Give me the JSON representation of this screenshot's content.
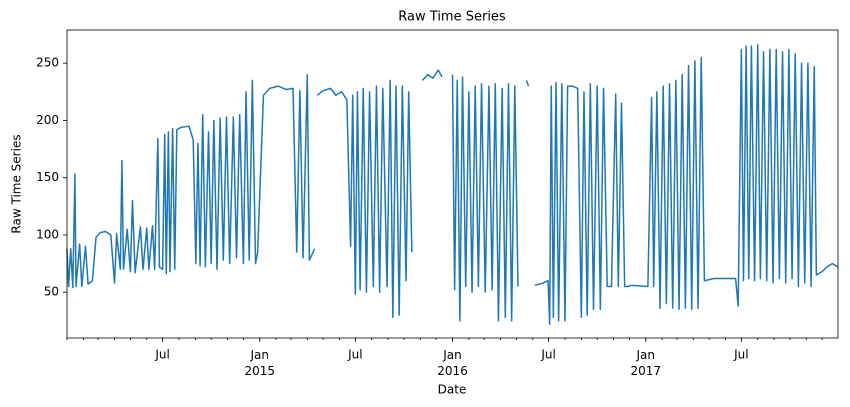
{
  "chart_data": {
    "type": "line",
    "title": "Raw Time Series",
    "xlabel": "Date",
    "ylabel": "Raw Time Series",
    "xlim": [
      "2014-01-01",
      "2017-12-31"
    ],
    "ylim": [
      10,
      279
    ],
    "yticks": [
      50,
      100,
      150,
      200,
      250
    ],
    "xticks": [
      {
        "value": "2014-07-01",
        "label": "Jul"
      },
      {
        "value": "2015-01-01",
        "label": "Jan\n2015"
      },
      {
        "value": "2015-07-01",
        "label": "Jul"
      },
      {
        "value": "2016-01-01",
        "label": "Jan\n2016"
      },
      {
        "value": "2016-07-01",
        "label": "Jul"
      },
      {
        "value": "2017-01-01",
        "label": "Jan\n2017"
      },
      {
        "value": "2017-07-01",
        "label": "Jul"
      }
    ],
    "grid": false,
    "series": [
      {
        "name": "Raw Time Series",
        "color": "#1f77b4",
        "x": [
          "2014-01-01",
          "2014-01-04",
          "2014-01-08",
          "2014-01-12",
          "2014-01-16",
          "2014-01-18",
          "2014-01-25",
          "2014-01-29",
          "2014-02-05",
          "2014-02-10",
          "2014-02-18",
          "2014-02-25",
          "2014-03-05",
          "2014-03-15",
          "2014-03-25",
          "2014-04-01",
          "2014-04-05",
          "2014-04-12",
          "2014-04-15",
          "2014-04-18",
          "2014-04-25",
          "2014-05-01",
          "2014-05-05",
          "2014-05-10",
          "2014-05-20",
          "2014-05-25",
          "2014-06-01",
          "2014-06-05",
          "2014-06-12",
          "2014-06-16",
          "2014-06-22",
          "2014-06-25",
          "2014-07-01",
          "2014-07-05",
          "2014-07-08",
          "2014-07-12",
          "2014-07-15",
          "2014-07-20",
          "2014-07-24",
          "2014-07-28",
          "2014-08-05",
          "2014-08-20",
          "2014-08-28",
          "2014-09-02",
          "2014-09-06",
          "2014-09-10",
          "2014-09-15",
          "2014-09-20",
          "2014-09-26",
          "2014-10-01",
          "2014-10-06",
          "2014-10-12",
          "2014-10-18",
          "2014-10-24",
          "2014-10-30",
          "2014-11-05",
          "2014-11-12",
          "2014-11-18",
          "2014-11-24",
          "2014-12-01",
          "2014-12-06",
          "2014-12-12",
          "2014-12-18",
          "2014-12-24",
          "2014-12-28",
          "2015-01-08",
          "2015-01-20",
          "2015-02-05",
          "2015-02-20",
          "2015-03-05",
          "2015-03-12",
          "2015-03-18",
          "2015-03-24",
          "2015-04-01",
          "2015-04-05",
          "2015-04-12",
          "2015-04-15",
          "2015-04-18",
          "2015-04-20",
          "2015-05-01",
          "2015-05-15",
          "2015-05-25",
          "2015-06-05",
          "2015-06-15",
          "2015-06-22",
          "2015-06-26",
          "2015-07-01",
          "2015-07-05",
          "2015-07-10",
          "2015-07-16",
          "2015-07-22",
          "2015-07-28",
          "2015-08-04",
          "2015-08-10",
          "2015-08-16",
          "2015-08-22",
          "2015-08-30",
          "2015-09-05",
          "2015-09-10",
          "2015-09-16",
          "2015-09-22",
          "2015-09-28",
          "2015-10-05",
          "2015-10-10",
          "2015-10-16",
          "2015-10-22",
          "2015-11-05",
          "2015-11-15",
          "2015-11-25",
          "2015-12-05",
          "2015-12-12",
          "2015-12-20",
          "2016-01-01",
          "2016-01-05",
          "2016-01-10",
          "2016-01-15",
          "2016-01-20",
          "2016-01-26",
          "2016-02-01",
          "2016-02-07",
          "2016-02-13",
          "2016-02-19",
          "2016-02-25",
          "2016-03-03",
          "2016-03-10",
          "2016-03-16",
          "2016-03-22",
          "2016-03-28",
          "2016-04-04",
          "2016-04-10",
          "2016-04-16",
          "2016-04-22",
          "2016-04-28",
          "2016-05-04",
          "2016-05-10",
          "2016-05-20",
          "2016-05-24",
          "2016-05-28",
          "2016-06-05",
          "2016-06-20",
          "2016-06-30",
          "2016-07-03",
          "2016-07-06",
          "2016-07-10",
          "2016-07-15",
          "2016-07-20",
          "2016-07-26",
          "2016-08-01",
          "2016-08-06",
          "2016-08-15",
          "2016-08-25",
          "2016-09-01",
          "2016-09-06",
          "2016-09-12",
          "2016-09-18",
          "2016-09-24",
          "2016-10-01",
          "2016-10-07",
          "2016-10-13",
          "2016-10-20",
          "2016-10-28",
          "2016-11-05",
          "2016-11-10",
          "2016-11-16",
          "2016-11-22",
          "2016-11-28",
          "2016-12-05",
          "2017-01-05",
          "2017-01-12",
          "2017-01-16",
          "2017-01-22",
          "2017-01-28",
          "2017-02-03",
          "2017-02-09",
          "2017-02-15",
          "2017-02-21",
          "2017-02-27",
          "2017-03-05",
          "2017-03-11",
          "2017-03-17",
          "2017-03-23",
          "2017-03-29",
          "2017-04-04",
          "2017-04-10",
          "2017-04-16",
          "2017-04-22",
          "2017-05-10",
          "2017-06-01",
          "2017-06-20",
          "2017-06-25",
          "2017-07-01",
          "2017-07-05",
          "2017-07-10",
          "2017-07-15",
          "2017-07-20",
          "2017-07-26",
          "2017-08-01",
          "2017-08-06",
          "2017-08-12",
          "2017-08-18",
          "2017-08-24",
          "2017-08-30",
          "2017-09-05",
          "2017-09-11",
          "2017-09-17",
          "2017-09-23",
          "2017-09-29",
          "2017-10-05",
          "2017-10-11",
          "2017-10-17",
          "2017-10-23",
          "2017-10-29",
          "2017-11-04",
          "2017-11-10",
          "2017-11-16",
          "2017-11-20",
          "2017-12-01",
          "2017-12-10",
          "2017-12-20",
          "2017-12-31"
        ],
        "values": [
          88,
          55,
          88,
          54,
          153,
          55,
          92,
          55,
          90,
          57,
          60,
          98,
          102,
          103,
          100,
          58,
          101,
          70,
          165,
          70,
          105,
          68,
          130,
          67,
          107,
          70,
          106,
          70,
          108,
          70,
          184,
          72,
          70,
          188,
          66,
          190,
          68,
          193,
          70,
          192,
          194,
          195,
          183,
          75,
          180,
          73,
          205,
          72,
          190,
          75,
          200,
          70,
          202,
          78,
          203,
          75,
          203,
          80,
          205,
          75,
          225,
          78,
          235,
          75,
          85,
          222,
          228,
          230,
          227,
          228,
          85,
          226,
          80,
          240,
          78,
          85,
          88,
          null,
          222,
          226,
          228,
          222,
          225,
          218,
          90,
          222,
          48,
          225,
          52,
          228,
          50,
          225,
          55,
          230,
          50,
          228,
          55,
          235,
          28,
          230,
          30,
          230,
          60,
          225,
          85,
          null,
          235,
          240,
          237,
          244,
          238,
          null,
          240,
          52,
          235,
          25,
          238,
          55,
          225,
          50,
          230,
          55,
          232,
          50,
          230,
          52,
          232,
          25,
          228,
          28,
          232,
          25,
          230,
          55,
          null,
          235,
          230,
          null,
          56,
          58,
          60,
          22,
          230,
          28,
          233,
          25,
          232,
          25,
          230,
          230,
          228,
          28,
          225,
          30,
          232,
          35,
          230,
          35,
          228,
          55,
          55,
          223,
          55,
          215,
          55,
          55,
          56,
          55,
          220,
          55,
          225,
          36,
          230,
          40,
          232,
          36,
          235,
          35,
          240,
          36,
          248,
          35,
          252,
          36,
          255,
          60,
          62,
          62,
          62,
          38,
          262,
          60,
          265,
          62,
          265,
          60,
          266,
          62,
          260,
          60,
          262,
          58,
          262,
          62,
          260,
          58,
          262,
          62,
          258,
          55,
          250,
          58,
          250,
          55,
          247,
          65,
          68,
          72,
          75,
          72
        ]
      }
    ]
  }
}
